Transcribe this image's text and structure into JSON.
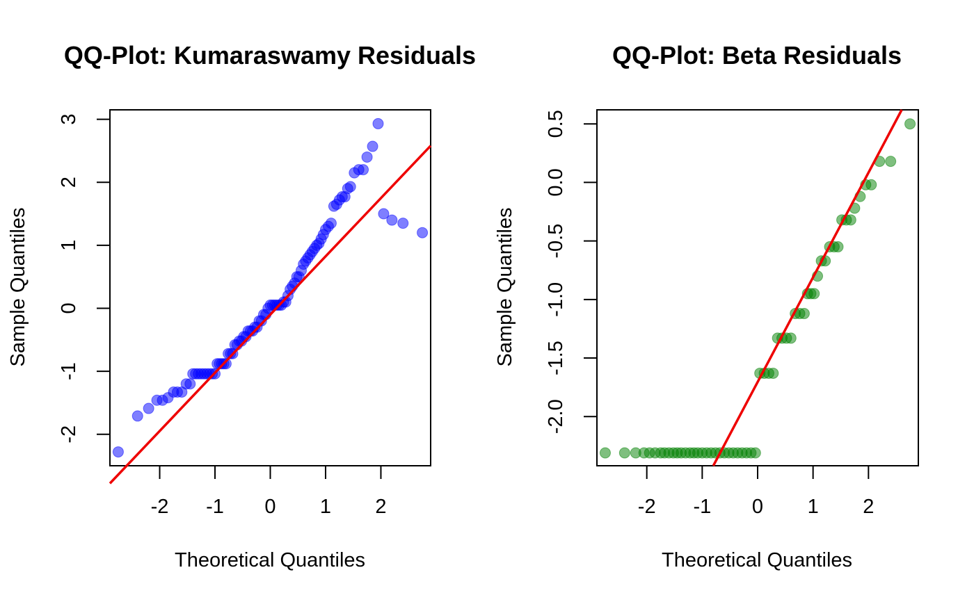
{
  "chart_data": [
    {
      "type": "scatter",
      "title": "QQ-Plot: Kumaraswamy Residuals",
      "xlabel": "Theoretical Quantiles",
      "ylabel": "Sample Quantiles",
      "xlim": [
        -2.9,
        2.9
      ],
      "ylim": [
        -2.5,
        3.15
      ],
      "xticks": [
        -2,
        -1,
        0,
        1,
        2
      ],
      "yticks": [
        -2,
        -1,
        0,
        1,
        2,
        3
      ],
      "point_color": "#0000ff",
      "line_color": "#ee0000",
      "grid": false,
      "reference_line": {
        "x": [
          -2.9,
          2.9
        ],
        "y": [
          -2.78,
          2.58
        ]
      },
      "series": [
        {
          "x": [
            -2.75,
            -2.4,
            -2.2,
            -2.05,
            -1.95,
            -1.85,
            -1.75,
            -1.68,
            -1.6,
            -1.52,
            -1.45,
            -1.4,
            -1.35,
            -1.3,
            -1.25,
            -1.2,
            -1.15,
            -1.1,
            -1.05,
            -1.0,
            -0.96,
            -0.92,
            -0.88,
            -0.84,
            -0.8,
            -0.76,
            -0.72,
            -0.68,
            -0.64,
            -0.6,
            -0.56,
            -0.52,
            -0.48,
            -0.44,
            -0.4,
            -0.36,
            -0.32,
            -0.28,
            -0.24,
            -0.2,
            -0.16,
            -0.12,
            -0.08,
            -0.04,
            0.0,
            0.04,
            0.08,
            0.12,
            0.16,
            0.2,
            0.24,
            0.28,
            0.32,
            0.36,
            0.4,
            0.44,
            0.48,
            0.52,
            0.56,
            0.6,
            0.64,
            0.68,
            0.72,
            0.76,
            0.8,
            0.84,
            0.88,
            0.92,
            0.96,
            1.0,
            1.05,
            1.1,
            1.15,
            1.2,
            1.25,
            1.3,
            1.35,
            1.4,
            1.45,
            1.52,
            1.6,
            1.68,
            1.75,
            1.85,
            1.95,
            2.05,
            2.2,
            2.4,
            2.75
          ],
          "y": [
            -2.28,
            -1.71,
            -1.59,
            -1.46,
            -1.46,
            -1.42,
            -1.33,
            -1.33,
            -1.33,
            -1.2,
            -1.2,
            -1.04,
            -1.04,
            -1.04,
            -1.04,
            -1.04,
            -1.04,
            -1.04,
            -1.04,
            -1.04,
            -0.88,
            -0.88,
            -0.88,
            -0.88,
            -0.88,
            -0.72,
            -0.72,
            -0.72,
            -0.58,
            -0.58,
            -0.52,
            -0.52,
            -0.45,
            -0.45,
            -0.36,
            -0.36,
            -0.36,
            -0.3,
            -0.3,
            -0.2,
            -0.2,
            -0.1,
            -0.1,
            0.0,
            0.05,
            0.05,
            0.05,
            0.05,
            0.05,
            0.05,
            0.1,
            0.1,
            0.2,
            0.3,
            0.35,
            0.4,
            0.5,
            0.5,
            0.6,
            0.7,
            0.75,
            0.8,
            0.85,
            0.9,
            0.95,
            1.0,
            1.03,
            1.1,
            1.17,
            1.25,
            1.3,
            1.35,
            1.62,
            1.65,
            1.72,
            1.77,
            1.77,
            1.9,
            1.93,
            2.15,
            2.2,
            2.2,
            2.4,
            2.57,
            2.93,
            1.5,
            1.4,
            1.35,
            1.2
          ]
        }
      ]
    },
    {
      "type": "scatter",
      "title": "QQ-Plot: Beta Residuals",
      "xlabel": "Theoretical Quantiles",
      "ylabel": "Sample Quantiles",
      "xlim": [
        -2.9,
        2.9
      ],
      "ylim": [
        -2.42,
        0.62
      ],
      "xticks": [
        -2,
        -1,
        0,
        1,
        2
      ],
      "yticks": [
        -2.0,
        -1.5,
        -1.0,
        -0.5,
        0.0,
        0.5
      ],
      "ytick_labels": [
        "-2.0",
        "-1.5",
        "-1.0",
        "-0.5",
        "0.0",
        "0.5"
      ],
      "point_color": "#008000",
      "line_color": "#ee0000",
      "grid": false,
      "reference_line": {
        "x": [
          -0.8,
          2.6
        ],
        "y": [
          -2.42,
          0.62
        ]
      },
      "series": [
        {
          "x": [
            -2.75,
            -2.4,
            -2.2,
            -2.05,
            -1.95,
            -1.85,
            -1.75,
            -1.68,
            -1.6,
            -1.52,
            -1.45,
            -1.38,
            -1.3,
            -1.22,
            -1.15,
            -1.08,
            -1.0,
            -0.92,
            -0.84,
            -0.76,
            -0.68,
            -0.6,
            -0.52,
            -0.44,
            -0.36,
            -0.28,
            -0.2,
            -0.12,
            -0.04,
            0.04,
            0.12,
            0.2,
            0.28,
            0.36,
            0.44,
            0.52,
            0.6,
            0.68,
            0.76,
            0.84,
            0.9,
            0.96,
            1.02,
            1.08,
            1.15,
            1.22,
            1.3,
            1.38,
            1.45,
            1.52,
            1.6,
            1.68,
            1.75,
            1.85,
            1.95,
            2.05,
            2.2,
            2.4,
            2.75
          ],
          "y": [
            -2.31,
            -2.31,
            -2.31,
            -2.31,
            -2.31,
            -2.31,
            -2.31,
            -2.31,
            -2.31,
            -2.31,
            -2.31,
            -2.31,
            -2.31,
            -2.31,
            -2.31,
            -2.31,
            -2.31,
            -2.31,
            -2.31,
            -2.31,
            -2.31,
            -2.31,
            -2.31,
            -2.31,
            -2.31,
            -2.31,
            -2.31,
            -2.31,
            -2.31,
            -1.63,
            -1.63,
            -1.63,
            -1.63,
            -1.33,
            -1.33,
            -1.33,
            -1.33,
            -1.12,
            -1.12,
            -1.12,
            -0.95,
            -0.95,
            -0.95,
            -0.8,
            -0.67,
            -0.67,
            -0.55,
            -0.55,
            -0.55,
            -0.32,
            -0.32,
            -0.32,
            -0.22,
            -0.12,
            -0.02,
            -0.02,
            0.18,
            0.18,
            0.5
          ]
        }
      ]
    }
  ]
}
